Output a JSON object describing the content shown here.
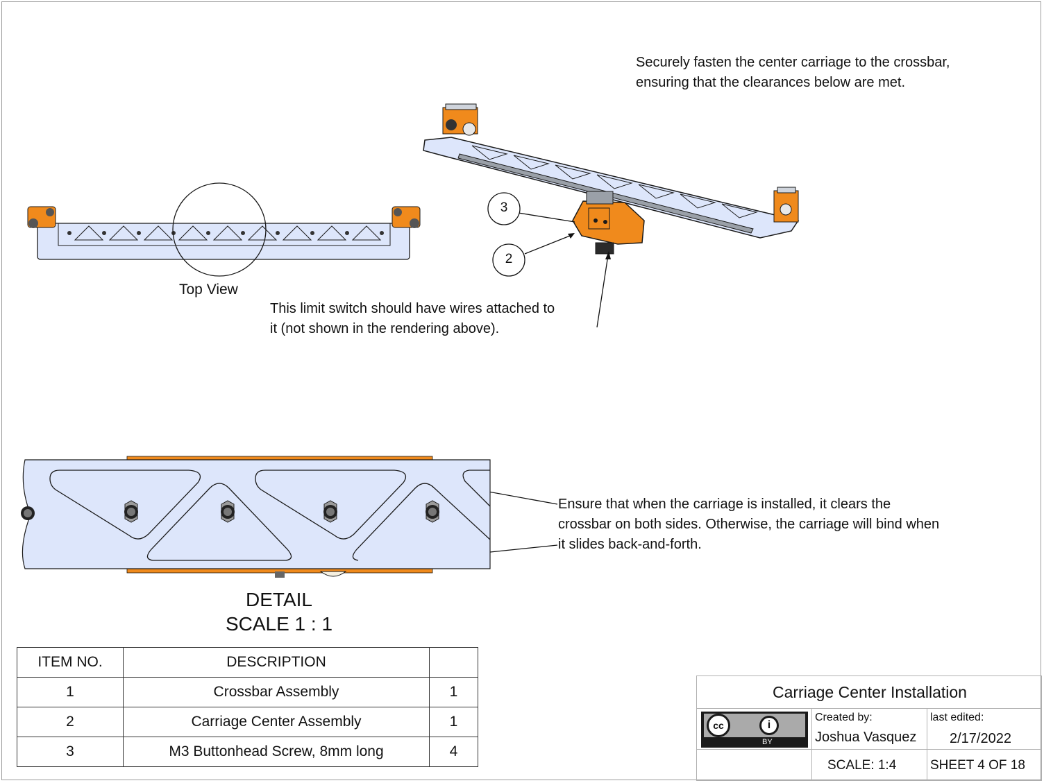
{
  "notes": {
    "fasten": "Securely fasten the center carriage to the crossbar,\nensuring that the clearances below are met.",
    "limit_switch": "This limit switch should have wires attached to\nit (not shown in the rendering above).",
    "clearance": "Ensure that when the carriage is installed, it clears the\ncrossbar on both sides. Otherwise, the carriage will bind when\nit slides back-and-forth."
  },
  "views": {
    "top_view_label": "Top View",
    "detail_label": "DETAIL",
    "detail_scale": "SCALE 1 : 1"
  },
  "callouts": [
    "3",
    "2"
  ],
  "bom": {
    "headers": [
      "ITEM NO.",
      "DESCRIPTION",
      ""
    ],
    "rows": [
      {
        "item": "1",
        "description": "Crossbar Assembly",
        "qty": "1"
      },
      {
        "item": "2",
        "description": "Carriage Center Assembly",
        "qty": "1"
      },
      {
        "item": "3",
        "description": "M3 Buttonhead Screw, 8mm long",
        "qty": "4"
      }
    ]
  },
  "title_block": {
    "title": "Carriage Center Installation",
    "created_by_label": "Created by:",
    "author": "Joshua Vasquez",
    "last_edited_label": "last edited:",
    "date": "2/17/2022",
    "scale": "SCALE: 1:4",
    "sheet": "SHEET 4 OF 18",
    "license_badge_text": "BY"
  },
  "colors": {
    "part_orange": "#f08a1c",
    "crossbar_fill": "#dde6fb",
    "outline": "#1a1a1a"
  }
}
